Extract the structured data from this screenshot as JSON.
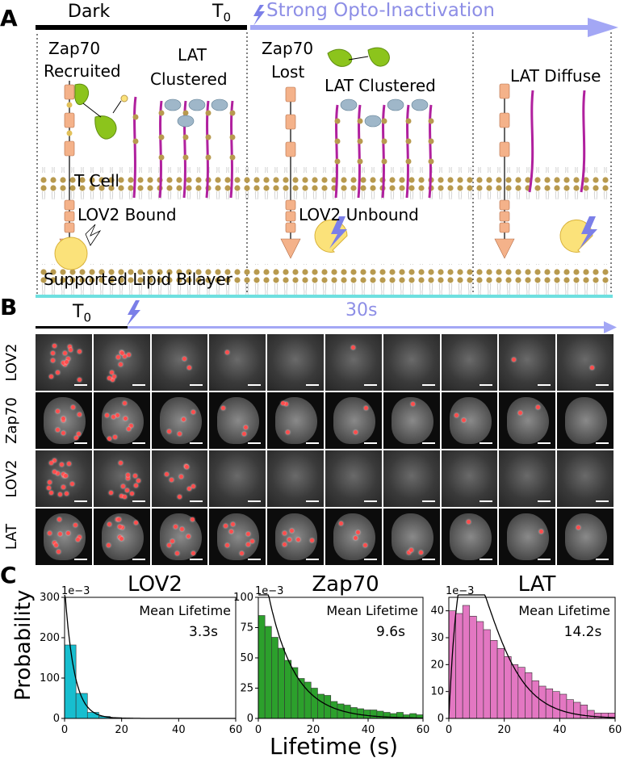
{
  "panel_labels": {
    "a": "A",
    "b": "B",
    "c": "C"
  },
  "panel_a": {
    "dark_label": "Dark",
    "t0_label": "T",
    "t0_sub": "0",
    "arrow_label": "Strong Opto-Inactivation",
    "zap70_recruited": [
      "Zap70",
      "Recruited"
    ],
    "lat_clustered_1": [
      "LAT",
      "Clustered"
    ],
    "zap70_lost": [
      "Zap70",
      "Lost"
    ],
    "lat_clustered_2": "LAT Clustered",
    "lat_diffuse": "LAT Diffuse",
    "t_cell": "T Cell",
    "lov2_bound": "LOV2 Bound",
    "lov2_unbound": "LOV2 Unbound",
    "supported_bilayer": "Supported Lipid Bilayer",
    "colors": {
      "bead": "#b89a4f",
      "lat": "#b0209e",
      "tcr": "#f4b28a",
      "zap": "#8cc41c",
      "lov": "#fbe27a",
      "light": "#7b7fe8",
      "arrow": "#a3a7f5",
      "glass": "#6fe0e0"
    }
  },
  "panel_b": {
    "t0_label": "T",
    "t0_sub": "0",
    "duration_label": "30s",
    "rows": [
      {
        "label": "LOV2",
        "style": "grey"
      },
      {
        "label": "Zap70",
        "style": "dark"
      },
      {
        "label": "LOV2",
        "style": "grey"
      },
      {
        "label": "LAT",
        "style": "dark"
      }
    ],
    "frames_per_row": 10,
    "spot_counts": [
      [
        14,
        10,
        2,
        1,
        0,
        1,
        0,
        0,
        1,
        1
      ],
      [
        9,
        9,
        4,
        3,
        3,
        2,
        1,
        2,
        2,
        0
      ],
      [
        16,
        12,
        8,
        0,
        0,
        0,
        0,
        0,
        0,
        0
      ],
      [
        10,
        9,
        8,
        8,
        6,
        4,
        3,
        1,
        1,
        1
      ]
    ]
  },
  "panel_c": {
    "ylabel": "Probability",
    "xlabel": "Lifetime (s)",
    "mean_label": "Mean Lifetime"
  },
  "chart_data": [
    {
      "type": "bar",
      "title": "LOV2",
      "annotation_value": "3.3s",
      "scale_label": "1e−3",
      "color": "#17becf",
      "bin_width": 4,
      "bins_start": [
        0,
        4,
        8,
        12,
        16,
        20,
        24,
        28,
        32,
        36,
        40,
        44,
        48,
        52,
        56
      ],
      "values": [
        182,
        62,
        15,
        5,
        2,
        1,
        0.5,
        0.3,
        0.2,
        0.1,
        0.2,
        0.1,
        0,
        0,
        0.1
      ],
      "fit": "exponential",
      "mean_lifetime": 3.3,
      "xlim": [
        0,
        60
      ],
      "ylim": [
        0,
        300
      ],
      "xticks": [
        0,
        20,
        40,
        60
      ],
      "yticks": [
        0,
        100,
        200,
        300
      ]
    },
    {
      "type": "bar",
      "title": "Zap70",
      "annotation_value": "9.6s",
      "scale_label": "1e−3",
      "color": "#2ca02c",
      "bin_width": 2.4,
      "bins_start": [
        0,
        2.4,
        4.8,
        7.2,
        9.6,
        12,
        14.4,
        16.8,
        19.2,
        21.6,
        24,
        26.4,
        28.8,
        31.2,
        33.6,
        36,
        38.4,
        40.8,
        43.2,
        45.6,
        48,
        50.4,
        52.8,
        55.2,
        57.6
      ],
      "values": [
        85,
        76,
        67,
        58,
        48,
        42,
        33,
        30,
        25,
        20,
        19,
        14,
        12,
        11,
        9,
        8,
        7,
        7,
        6,
        5,
        4,
        5,
        3,
        4,
        3
      ],
      "fit": "exponential",
      "mean_lifetime": 9.6,
      "xlim": [
        0,
        60
      ],
      "ylim": [
        0,
        100
      ],
      "xticks": [
        0,
        20,
        40,
        60
      ],
      "yticks": [
        0,
        25,
        50,
        75,
        100
      ]
    },
    {
      "type": "bar",
      "title": "LAT",
      "annotation_value": "14.2s",
      "scale_label": "1e−3",
      "color": "#e377c2",
      "bin_width": 2.5,
      "bins_start": [
        0,
        2.5,
        5,
        7.5,
        10,
        12.5,
        15,
        17.5,
        20,
        22.5,
        25,
        27.5,
        30,
        32.5,
        35,
        37.5,
        40,
        42.5,
        45,
        47.5,
        50,
        52.5,
        55,
        57.5
      ],
      "values": [
        40,
        39,
        42,
        38,
        36,
        33,
        29,
        26,
        23,
        20,
        19,
        17,
        14,
        12,
        11,
        10,
        9,
        7,
        6,
        5,
        3,
        2,
        2,
        2
      ],
      "fit": "gamma",
      "mean_lifetime": 14.2,
      "xlim": [
        0,
        60
      ],
      "ylim": [
        0,
        45
      ],
      "xticks": [
        0,
        20,
        40,
        60
      ],
      "yticks": [
        0,
        10,
        20,
        30,
        40
      ]
    }
  ]
}
